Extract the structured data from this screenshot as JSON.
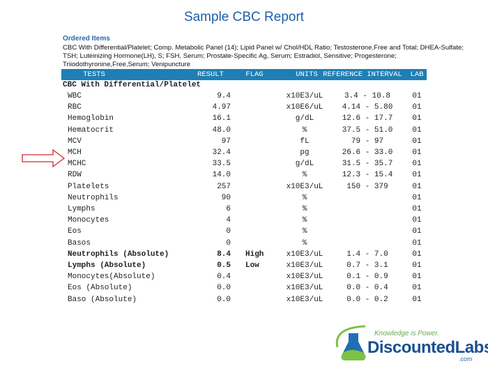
{
  "title": "Sample CBC Report",
  "ordered": {
    "heading": "Ordered Items",
    "lines": [
      "CBC With Differential/Platelet; Comp. Metabolic Panel (14); Lipid Panel w/ Chol/HDL Ratio; Testosterone,Free and Total; DHEA-Sulfate;",
      "TSH; Luteinizing Hormone(LH), S; FSH, Serum; Prostate-Specific Ag, Serum; Estradiol, Sensitive; Progesterone;",
      "Triiodothyronine,Free,Serum; Venipuncture"
    ]
  },
  "table": {
    "columns": [
      "TESTS",
      "RESULT",
      "FLAG",
      "UNITS",
      "REFERENCE INTERVAL",
      "LAB"
    ],
    "section": "CBC With Differential/Platelet",
    "rows": [
      [
        "WBC",
        "9.4",
        null,
        "x10E3/uL",
        "3.4 - 10.8",
        "01"
      ],
      [
        "RBC",
        "4.97",
        null,
        "x10E6/uL",
        "4.14 - 5.80",
        "01"
      ],
      [
        "Hemoglobin",
        "16.1",
        null,
        "g/dL",
        "12.6 - 17.7",
        "01"
      ],
      [
        "Hematocrit",
        "48.0",
        null,
        "%",
        "37.5 - 51.0",
        "01"
      ],
      [
        "MCV",
        "97",
        null,
        "fL",
        "79 - 97",
        "01"
      ],
      [
        "MCH",
        "32.4",
        null,
        "pg",
        "26.6 - 33.0",
        "01"
      ],
      [
        "MCHC",
        "33.5",
        null,
        "g/dL",
        "31.5 - 35.7",
        "01"
      ],
      [
        "RDW",
        "14.0",
        null,
        "%",
        "12.3 - 15.4",
        "01"
      ],
      [
        "Platelets",
        "257",
        null,
        "x10E3/uL",
        "150 - 379",
        "01"
      ],
      [
        "Neutrophils",
        "90",
        null,
        "%",
        null,
        "01"
      ],
      [
        "Lymphs",
        "6",
        null,
        "%",
        null,
        "01"
      ],
      [
        "Monocytes",
        "4",
        null,
        "%",
        null,
        "01"
      ],
      [
        "Eos",
        "0",
        null,
        "%",
        null,
        "01"
      ],
      [
        "Basos",
        "0",
        null,
        "%",
        null,
        "01"
      ],
      [
        "Neutrophils (Absolute)",
        "8.4",
        "High",
        "x10E3/uL",
        "1.4 - 7.0",
        "01"
      ],
      [
        "Lymphs (Absolute)",
        "0.5",
        "Low",
        "x10E3/uL",
        "0.7 - 3.1",
        "01"
      ],
      [
        "Monocytes(Absolute)",
        "0.4",
        null,
        "x10E3/uL",
        "0.1 - 0.9",
        "01"
      ],
      [
        "Eos (Absolute)",
        "0.0",
        null,
        "x10E3/uL",
        "0.0 - 0.4",
        "01"
      ],
      [
        "Baso (Absolute)",
        "0.0",
        null,
        "x10E3/uL",
        "0.0 - 0.2",
        "01"
      ]
    ]
  },
  "logo": {
    "tagline": "Knowledge is Power.",
    "brand": "DiscountedLabs",
    "suffix": ".com"
  }
}
